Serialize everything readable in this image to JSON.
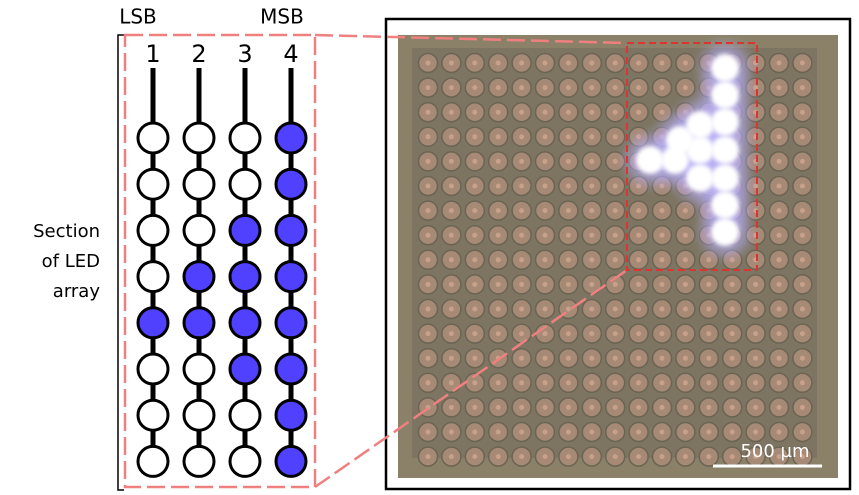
{
  "labels": {
    "lsb": "LSB",
    "msb": "MSB",
    "columns": [
      "1",
      "2",
      "3",
      "4"
    ],
    "section": [
      "Section",
      "of LED",
      "array"
    ],
    "scale_bar": "500 µm"
  }
}
